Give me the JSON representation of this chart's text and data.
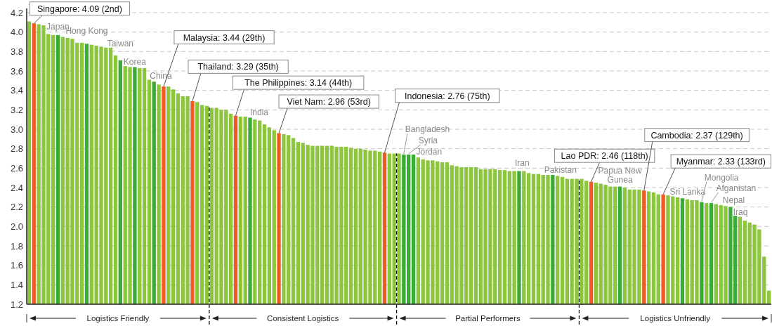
{
  "chart_data": {
    "type": "bar",
    "categories": [
      null,
      null,
      null,
      null,
      null,
      null,
      null,
      null,
      null,
      null,
      null,
      null,
      null,
      null,
      null,
      null,
      null,
      null,
      null,
      null,
      null,
      null,
      null,
      null,
      null,
      null,
      null,
      null,
      null,
      null,
      null,
      null,
      null,
      null,
      null,
      null,
      null,
      null,
      null,
      null,
      null,
      null,
      null,
      null,
      null,
      null,
      null,
      null,
      null,
      null,
      null,
      null,
      null,
      null,
      null,
      null,
      null,
      null,
      null,
      null,
      null,
      null,
      null,
      null,
      null,
      null,
      null,
      null,
      null,
      null,
      null,
      null,
      null,
      null,
      null,
      null,
      null,
      null,
      null,
      null,
      null,
      null,
      null,
      null,
      null,
      null,
      null,
      null,
      null,
      null,
      null,
      null,
      null,
      null,
      null,
      null,
      null,
      null,
      null,
      null,
      null,
      null,
      null,
      null,
      null,
      null,
      null,
      null,
      null,
      null,
      null,
      null,
      null,
      null,
      null,
      null,
      null,
      null,
      null,
      null,
      null,
      null,
      null,
      null,
      null,
      null,
      null,
      null,
      null,
      null,
      null,
      null,
      null,
      null,
      null,
      null,
      null,
      null,
      null,
      null,
      null,
      null,
      null,
      null,
      null,
      null,
      null,
      null,
      null,
      null,
      null,
      null,
      null,
      null,
      null
    ],
    "values": [
      4.11,
      4.09,
      4.08,
      4.07,
      3.98,
      3.97,
      3.97,
      3.95,
      3.94,
      3.93,
      3.89,
      3.89,
      3.88,
      3.87,
      3.86,
      3.85,
      3.84,
      3.84,
      3.76,
      3.71,
      3.65,
      3.64,
      3.64,
      3.63,
      3.63,
      3.51,
      3.49,
      3.46,
      3.44,
      3.44,
      3.41,
      3.37,
      3.34,
      3.34,
      3.29,
      3.28,
      3.25,
      3.24,
      3.22,
      3.22,
      3.2,
      3.2,
      3.16,
      3.14,
      3.13,
      3.13,
      3.12,
      3.1,
      3.09,
      3.05,
      3.02,
      2.99,
      2.96,
      2.95,
      2.94,
      2.91,
      2.87,
      2.86,
      2.84,
      2.83,
      2.83,
      2.83,
      2.83,
      2.83,
      2.82,
      2.82,
      2.82,
      2.81,
      2.8,
      2.8,
      2.79,
      2.78,
      2.78,
      2.77,
      2.76,
      2.75,
      2.75,
      2.75,
      2.74,
      2.74,
      2.74,
      2.71,
      2.69,
      2.68,
      2.68,
      2.67,
      2.66,
      2.66,
      2.63,
      2.62,
      2.61,
      2.61,
      2.61,
      2.61,
      2.59,
      2.59,
      2.59,
      2.59,
      2.58,
      2.58,
      2.57,
      2.57,
      2.57,
      2.57,
      2.55,
      2.54,
      2.54,
      2.53,
      2.53,
      2.53,
      2.52,
      2.51,
      2.49,
      2.49,
      2.49,
      2.49,
      2.47,
      2.46,
      2.45,
      2.44,
      2.43,
      2.41,
      2.41,
      2.41,
      2.4,
      2.38,
      2.38,
      2.38,
      2.37,
      2.36,
      2.35,
      2.33,
      2.33,
      2.32,
      2.31,
      2.3,
      2.29,
      2.28,
      2.27,
      2.27,
      2.25,
      2.24,
      2.24,
      2.23,
      2.22,
      2.21,
      2.2,
      2.11,
      2.1,
      2.06,
      2.04,
      2.02,
      1.97,
      1.69,
      1.34
    ],
    "colors": [
      "#8cc63e",
      "#f05a23",
      "#8cc63e",
      "#8cc63e",
      "#8cc63e",
      "#8cc63e",
      "#3bab37",
      "#8cc63e",
      "#8cc63e",
      "#8cc63e",
      "#8cc63e",
      "#8cc63e",
      "#3bab37",
      "#8cc63e",
      "#8cc63e",
      "#8cc63e",
      "#8cc63e",
      "#8cc63e",
      "#8cc63e",
      "#3bab37",
      "#8cc63e",
      "#8cc63e",
      "#3bab37",
      "#8cc63e",
      "#8cc63e",
      "#8cc63e",
      "#3bab37",
      "#8cc63e",
      "#f05a23",
      "#8cc63e",
      "#8cc63e",
      "#8cc63e",
      "#8cc63e",
      "#8cc63e",
      "#f05a23",
      "#8cc63e",
      "#8cc63e",
      "#8cc63e",
      "#8cc63e",
      "#8cc63e",
      "#8cc63e",
      "#8cc63e",
      "#8cc63e",
      "#f05a23",
      "#8cc63e",
      "#8cc63e",
      "#3bab37",
      "#8cc63e",
      "#8cc63e",
      "#8cc63e",
      "#8cc63e",
      "#8cc63e",
      "#f05a23",
      "#8cc63e",
      "#8cc63e",
      "#8cc63e",
      "#8cc63e",
      "#8cc63e",
      "#8cc63e",
      "#8cc63e",
      "#8cc63e",
      "#8cc63e",
      "#8cc63e",
      "#8cc63e",
      "#8cc63e",
      "#8cc63e",
      "#8cc63e",
      "#8cc63e",
      "#8cc63e",
      "#8cc63e",
      "#8cc63e",
      "#8cc63e",
      "#8cc63e",
      "#8cc63e",
      "#f05a23",
      "#8cc63e",
      "#8cc63e",
      "#8cc63e",
      "#3bab37",
      "#3bab37",
      "#3bab37",
      "#8cc63e",
      "#8cc63e",
      "#8cc63e",
      "#8cc63e",
      "#8cc63e",
      "#8cc63e",
      "#8cc63e",
      "#8cc63e",
      "#8cc63e",
      "#8cc63e",
      "#8cc63e",
      "#8cc63e",
      "#8cc63e",
      "#8cc63e",
      "#8cc63e",
      "#8cc63e",
      "#8cc63e",
      "#8cc63e",
      "#8cc63e",
      "#8cc63e",
      "#8cc63e",
      "#3bab37",
      "#8cc63e",
      "#8cc63e",
      "#8cc63e",
      "#8cc63e",
      "#8cc63e",
      "#8cc63e",
      "#3bab37",
      "#8cc63e",
      "#8cc63e",
      "#8cc63e",
      "#8cc63e",
      "#8cc63e",
      "#8cc63e",
      "#8cc63e",
      "#f05a23",
      "#8cc63e",
      "#8cc63e",
      "#8cc63e",
      "#8cc63e",
      "#8cc63e",
      "#3bab37",
      "#8cc63e",
      "#8cc63e",
      "#8cc63e",
      "#8cc63e",
      "#f05a23",
      "#8cc63e",
      "#8cc63e",
      "#8cc63e",
      "#f05a23",
      "#8cc63e",
      "#8cc63e",
      "#8cc63e",
      "#3bab37",
      "#8cc63e",
      "#8cc63e",
      "#8cc63e",
      "#3bab37",
      "#8cc63e",
      "#3bab37",
      "#8cc63e",
      "#8cc63e",
      "#8cc63e",
      "#3bab37",
      "#3bab37",
      "#8cc63e",
      "#8cc63e",
      "#8cc63e",
      "#8cc63e",
      "#8cc63e",
      "#8cc63e",
      "#8cc63e"
    ],
    "value_labels": [
      null,
      "Singapore: 4.09 (2nd)",
      null,
      null,
      null,
      null,
      "Japan",
      null,
      null,
      null,
      null,
      null,
      "Hong Kong",
      null,
      null,
      null,
      null,
      null,
      null,
      "Taiwan",
      null,
      null,
      "Korea",
      null,
      null,
      null,
      "China",
      null,
      "Malaysia: 3.44 (29th)",
      null,
      null,
      null,
      null,
      null,
      "Thailand: 3.29 (35th)",
      null,
      null,
      null,
      null,
      null,
      null,
      null,
      null,
      "The Philippines: 3.14 (44th)",
      null,
      null,
      "India",
      null,
      null,
      null,
      null,
      null,
      "Viet Nam: 2.96 (53rd)",
      null,
      null,
      null,
      null,
      null,
      null,
      null,
      null,
      null,
      null,
      null,
      null,
      null,
      null,
      null,
      null,
      null,
      null,
      null,
      null,
      null,
      "Indonesia: 2.76 (75th)",
      null,
      null,
      null,
      "Bangladesh",
      "Syria",
      "Jordan",
      null,
      null,
      null,
      null,
      null,
      null,
      null,
      null,
      null,
      null,
      null,
      null,
      null,
      null,
      null,
      null,
      null,
      null,
      null,
      null,
      null,
      "Iran",
      null,
      null,
      null,
      null,
      null,
      null,
      "Pakistan",
      null,
      null,
      null,
      null,
      null,
      null,
      null,
      "Lao PDR: 2.46 (118th)",
      null,
      null,
      null,
      null,
      null,
      "Papua New Gunea",
      null,
      null,
      null,
      null,
      "Cambodia: 2.37 (129th)",
      null,
      null,
      null,
      "Myanmar: 2.33 (133rd)",
      null,
      null,
      null,
      "Sri Lanka",
      null,
      null,
      null,
      "Mongolia",
      null,
      "Afganistan",
      null,
      null,
      null,
      "Nepal",
      "Iraq",
      null,
      null,
      null,
      null,
      null,
      null,
      null
    ],
    "ylim": [
      1.2,
      4.2
    ],
    "yticks": [
      1.2,
      1.4,
      1.6,
      1.8,
      {
        "value": 2,
        "label": "2.0"
      },
      2.2,
      2.4,
      2.6,
      2.8,
      {
        "value": 3,
        "label": "3.0"
      },
      3.2,
      3.4,
      3.6,
      3.8,
      {
        "value": 4,
        "label": "4.0"
      },
      4.2
    ],
    "tick_labels": "y",
    "grid": "y",
    "annotations": [
      "Logistics Friendly",
      "Consistent Logistics",
      "Partial Performers",
      "Logistics Unfriendly"
    ]
  }
}
